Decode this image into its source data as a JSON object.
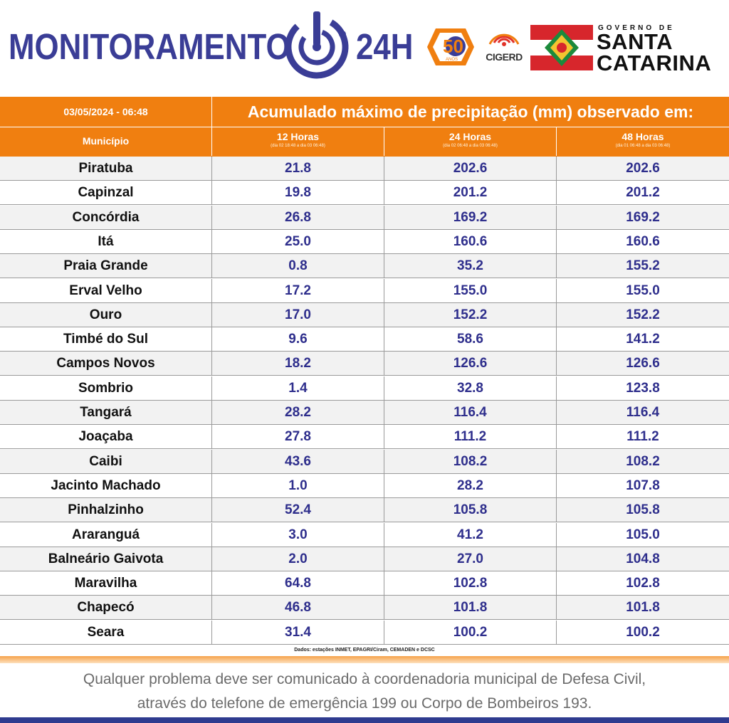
{
  "header": {
    "brand_left": "MONITORAMENTO",
    "brand_right": "24H",
    "logo50_text": "50",
    "logo50_sub": "ANOS",
    "cigerd": "CIGERD",
    "gov_small": "GOVERNO DE",
    "gov_line1": "SANTA",
    "gov_line2": "CATARINA",
    "colors": {
      "brand": "#3a3d96",
      "orange": "#f07f10",
      "flag_red": "#d7262c",
      "flag_green": "#1c8a3c"
    }
  },
  "table": {
    "date": "03/05/2024 - 06:48",
    "title": "Acumulado máximo de precipitação (mm) observado em:",
    "col_municipio": "Município",
    "columns": [
      {
        "label": "12 Horas",
        "range": "(dia 02 18:48 a dia 03 06:48)"
      },
      {
        "label": "24 Horas",
        "range": "(dia 02 06:48 a dia 03 06:48)"
      },
      {
        "label": "48 Horas",
        "range": "(dia 01 06:48 a dia 03 06:48)"
      }
    ],
    "rows": [
      [
        "Piratuba",
        "21.8",
        "202.6",
        "202.6"
      ],
      [
        "Capinzal",
        "19.8",
        "201.2",
        "201.2"
      ],
      [
        "Concórdia",
        "26.8",
        "169.2",
        "169.2"
      ],
      [
        "Itá",
        "25.0",
        "160.6",
        "160.6"
      ],
      [
        "Praia Grande",
        "0.8",
        "35.2",
        "155.2"
      ],
      [
        "Erval Velho",
        "17.2",
        "155.0",
        "155.0"
      ],
      [
        "Ouro",
        "17.0",
        "152.2",
        "152.2"
      ],
      [
        "Timbé do Sul",
        "9.6",
        "58.6",
        "141.2"
      ],
      [
        "Campos Novos",
        "18.2",
        "126.6",
        "126.6"
      ],
      [
        "Sombrio",
        "1.4",
        "32.8",
        "123.8"
      ],
      [
        "Tangará",
        "28.2",
        "116.4",
        "116.4"
      ],
      [
        "Joaçaba",
        "27.8",
        "111.2",
        "111.2"
      ],
      [
        "Caibi",
        "43.6",
        "108.2",
        "108.2"
      ],
      [
        "Jacinto Machado",
        "1.0",
        "28.2",
        "107.8"
      ],
      [
        "Pinhalzinho",
        "52.4",
        "105.8",
        "105.8"
      ],
      [
        "Araranguá",
        "3.0",
        "41.2",
        "105.0"
      ],
      [
        "Balneário Gaivota",
        "2.0",
        "27.0",
        "104.8"
      ],
      [
        "Maravilha",
        "64.8",
        "102.8",
        "102.8"
      ],
      [
        "Chapecó",
        "46.8",
        "101.8",
        "101.8"
      ],
      [
        "Seara",
        "31.4",
        "100.2",
        "100.2"
      ]
    ],
    "source": "Dados: estações INMET, EPAGRI/Ciram, CEMADEN e DCSC"
  },
  "footer": {
    "line1": "Qualquer problema deve ser comunicado à coordenadoria municipal de Defesa Civil,",
    "line2": "através do telefone de emergência 199 ou Corpo de Bombeiros 193."
  }
}
